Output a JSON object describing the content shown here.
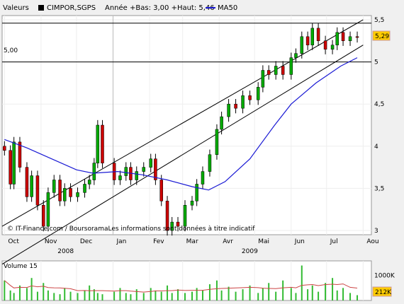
{
  "header": {
    "section_label": "Valeurs",
    "series_label": "CIMPOR,SGPS",
    "stats_label": "Année +Bas: 3,00 +Haut: 5,46",
    "ma_label": "MA50"
  },
  "volume_label": "Volume 15",
  "copyright": "© IT-Finance.com / BoursoramaLes informations sont données à titre indicatif",
  "hline_label": "5,00",
  "last_price_badge": "5,29",
  "last_volume_badge": "212K",
  "colors": {
    "up": "#00aa00",
    "down": "#cc0000",
    "ma": "#1a1ad4",
    "badge": "#ffcc00",
    "background": "#ffffff",
    "frame": "#f0f0f0"
  },
  "chart_data": {
    "type": "candlestick",
    "title": "CIMPOR,SGPS",
    "ylim": [
      2.95,
      5.55
    ],
    "y_ticks": [
      "3",
      "3,5",
      "4",
      "4,5",
      "5",
      "5,5"
    ],
    "x_month_labels": [
      "Oct",
      "Nov",
      "Dec",
      "Jan",
      "Fev",
      "Mar",
      "Avr",
      "Mai",
      "Jun",
      "Jul",
      "Aou"
    ],
    "x_year_labels": [
      "2008",
      "2009"
    ],
    "price_series": [
      {
        "d": "2008-10-01",
        "c": 3.95
      },
      {
        "d": "2008-10-06",
        "c": 3.55
      },
      {
        "d": "2008-10-09",
        "c": 4.05
      },
      {
        "d": "2008-10-14",
        "c": 3.75
      },
      {
        "d": "2008-10-20",
        "c": 3.4
      },
      {
        "d": "2008-10-24",
        "c": 3.65
      },
      {
        "d": "2008-10-29",
        "c": 3.3
      },
      {
        "d": "2008-11-03",
        "c": 3.05
      },
      {
        "d": "2008-11-07",
        "c": 3.45
      },
      {
        "d": "2008-11-12",
        "c": 3.6
      },
      {
        "d": "2008-11-17",
        "c": 3.35
      },
      {
        "d": "2008-11-21",
        "c": 3.5
      },
      {
        "d": "2008-11-26",
        "c": 3.4
      },
      {
        "d": "2008-12-02",
        "c": 3.45
      },
      {
        "d": "2008-12-08",
        "c": 3.55
      },
      {
        "d": "2008-12-12",
        "c": 3.6
      },
      {
        "d": "2008-12-16",
        "c": 3.8
      },
      {
        "d": "2008-12-19",
        "c": 4.25
      },
      {
        "d": "2008-12-23",
        "c": 3.8
      },
      {
        "d": "2009-01-02",
        "c": 3.6
      },
      {
        "d": "2009-01-07",
        "c": 3.65
      },
      {
        "d": "2009-01-12",
        "c": 3.75
      },
      {
        "d": "2009-01-16",
        "c": 3.6
      },
      {
        "d": "2009-01-21",
        "c": 3.7
      },
      {
        "d": "2009-01-27",
        "c": 3.75
      },
      {
        "d": "2009-02-02",
        "c": 3.85
      },
      {
        "d": "2009-02-06",
        "c": 3.6
      },
      {
        "d": "2009-02-11",
        "c": 3.35
      },
      {
        "d": "2009-02-16",
        "c": 3.0
      },
      {
        "d": "2009-02-20",
        "c": 3.1
      },
      {
        "d": "2009-02-25",
        "c": 3.05
      },
      {
        "d": "2009-03-03",
        "c": 3.3
      },
      {
        "d": "2009-03-09",
        "c": 3.35
      },
      {
        "d": "2009-03-13",
        "c": 3.55
      },
      {
        "d": "2009-03-18",
        "c": 3.7
      },
      {
        "d": "2009-03-24",
        "c": 3.9
      },
      {
        "d": "2009-03-30",
        "c": 4.2
      },
      {
        "d": "2009-04-03",
        "c": 4.35
      },
      {
        "d": "2009-04-09",
        "c": 4.5
      },
      {
        "d": "2009-04-15",
        "c": 4.45
      },
      {
        "d": "2009-04-21",
        "c": 4.6
      },
      {
        "d": "2009-04-27",
        "c": 4.55
      },
      {
        "d": "2009-05-04",
        "c": 4.7
      },
      {
        "d": "2009-05-08",
        "c": 4.9
      },
      {
        "d": "2009-05-13",
        "c": 4.85
      },
      {
        "d": "2009-05-19",
        "c": 4.95
      },
      {
        "d": "2009-05-25",
        "c": 4.85
      },
      {
        "d": "2009-06-01",
        "c": 5.05
      },
      {
        "d": "2009-06-05",
        "c": 5.1
      },
      {
        "d": "2009-06-10",
        "c": 5.3
      },
      {
        "d": "2009-06-15",
        "c": 5.2
      },
      {
        "d": "2009-06-19",
        "c": 5.4
      },
      {
        "d": "2009-06-24",
        "c": 5.25
      },
      {
        "d": "2009-06-30",
        "c": 5.15
      },
      {
        "d": "2009-07-06",
        "c": 5.2
      },
      {
        "d": "2009-07-10",
        "c": 5.35
      },
      {
        "d": "2009-07-15",
        "c": 5.25
      },
      {
        "d": "2009-07-21",
        "c": 5.3
      },
      {
        "d": "2009-07-27",
        "c": 5.29
      }
    ],
    "ma50_series": [
      {
        "d": "2008-10-01",
        "v": 4.08
      },
      {
        "d": "2008-10-20",
        "v": 3.98
      },
      {
        "d": "2008-11-10",
        "v": 3.85
      },
      {
        "d": "2008-12-01",
        "v": 3.72
      },
      {
        "d": "2008-12-15",
        "v": 3.68
      },
      {
        "d": "2009-01-05",
        "v": 3.7
      },
      {
        "d": "2009-01-26",
        "v": 3.66
      },
      {
        "d": "2009-02-16",
        "v": 3.6
      },
      {
        "d": "2009-03-09",
        "v": 3.52
      },
      {
        "d": "2009-03-23",
        "v": 3.48
      },
      {
        "d": "2009-04-06",
        "v": 3.58
      },
      {
        "d": "2009-04-27",
        "v": 3.85
      },
      {
        "d": "2009-05-18",
        "v": 4.25
      },
      {
        "d": "2009-06-01",
        "v": 4.5
      },
      {
        "d": "2009-06-22",
        "v": 4.75
      },
      {
        "d": "2009-07-13",
        "v": 4.95
      },
      {
        "d": "2009-07-27",
        "v": 5.05
      }
    ],
    "trend_lines": [
      {
        "from": {
          "d": "2008-09-29",
          "v": 3.05
        },
        "to": {
          "d": "2009-08-01",
          "v": 5.5
        }
      },
      {
        "from": {
          "d": "2008-09-29",
          "v": 2.6
        },
        "to": {
          "d": "2009-08-01",
          "v": 5.2
        }
      }
    ],
    "horizontal_lines": [
      {
        "v": 5.0,
        "label": "5,00"
      },
      {
        "v": 5.46
      }
    ],
    "volume": {
      "ylim": [
        0,
        1500
      ],
      "y_ticks": [
        "1000K",
        "212K"
      ],
      "values": [
        800,
        400,
        300,
        600,
        500,
        900,
        350,
        700,
        400,
        300,
        250,
        500,
        350,
        300,
        400,
        600,
        450,
        300,
        250,
        350,
        500,
        300,
        250,
        450,
        300,
        500,
        400,
        350,
        600,
        300,
        450,
        300,
        350,
        500,
        400,
        650,
        800,
        400,
        550,
        350,
        450,
        600,
        300,
        500,
        700,
        350,
        800,
        500,
        300,
        1400,
        450,
        600,
        350,
        700,
        900,
        400,
        500,
        300,
        212
      ]
    }
  }
}
